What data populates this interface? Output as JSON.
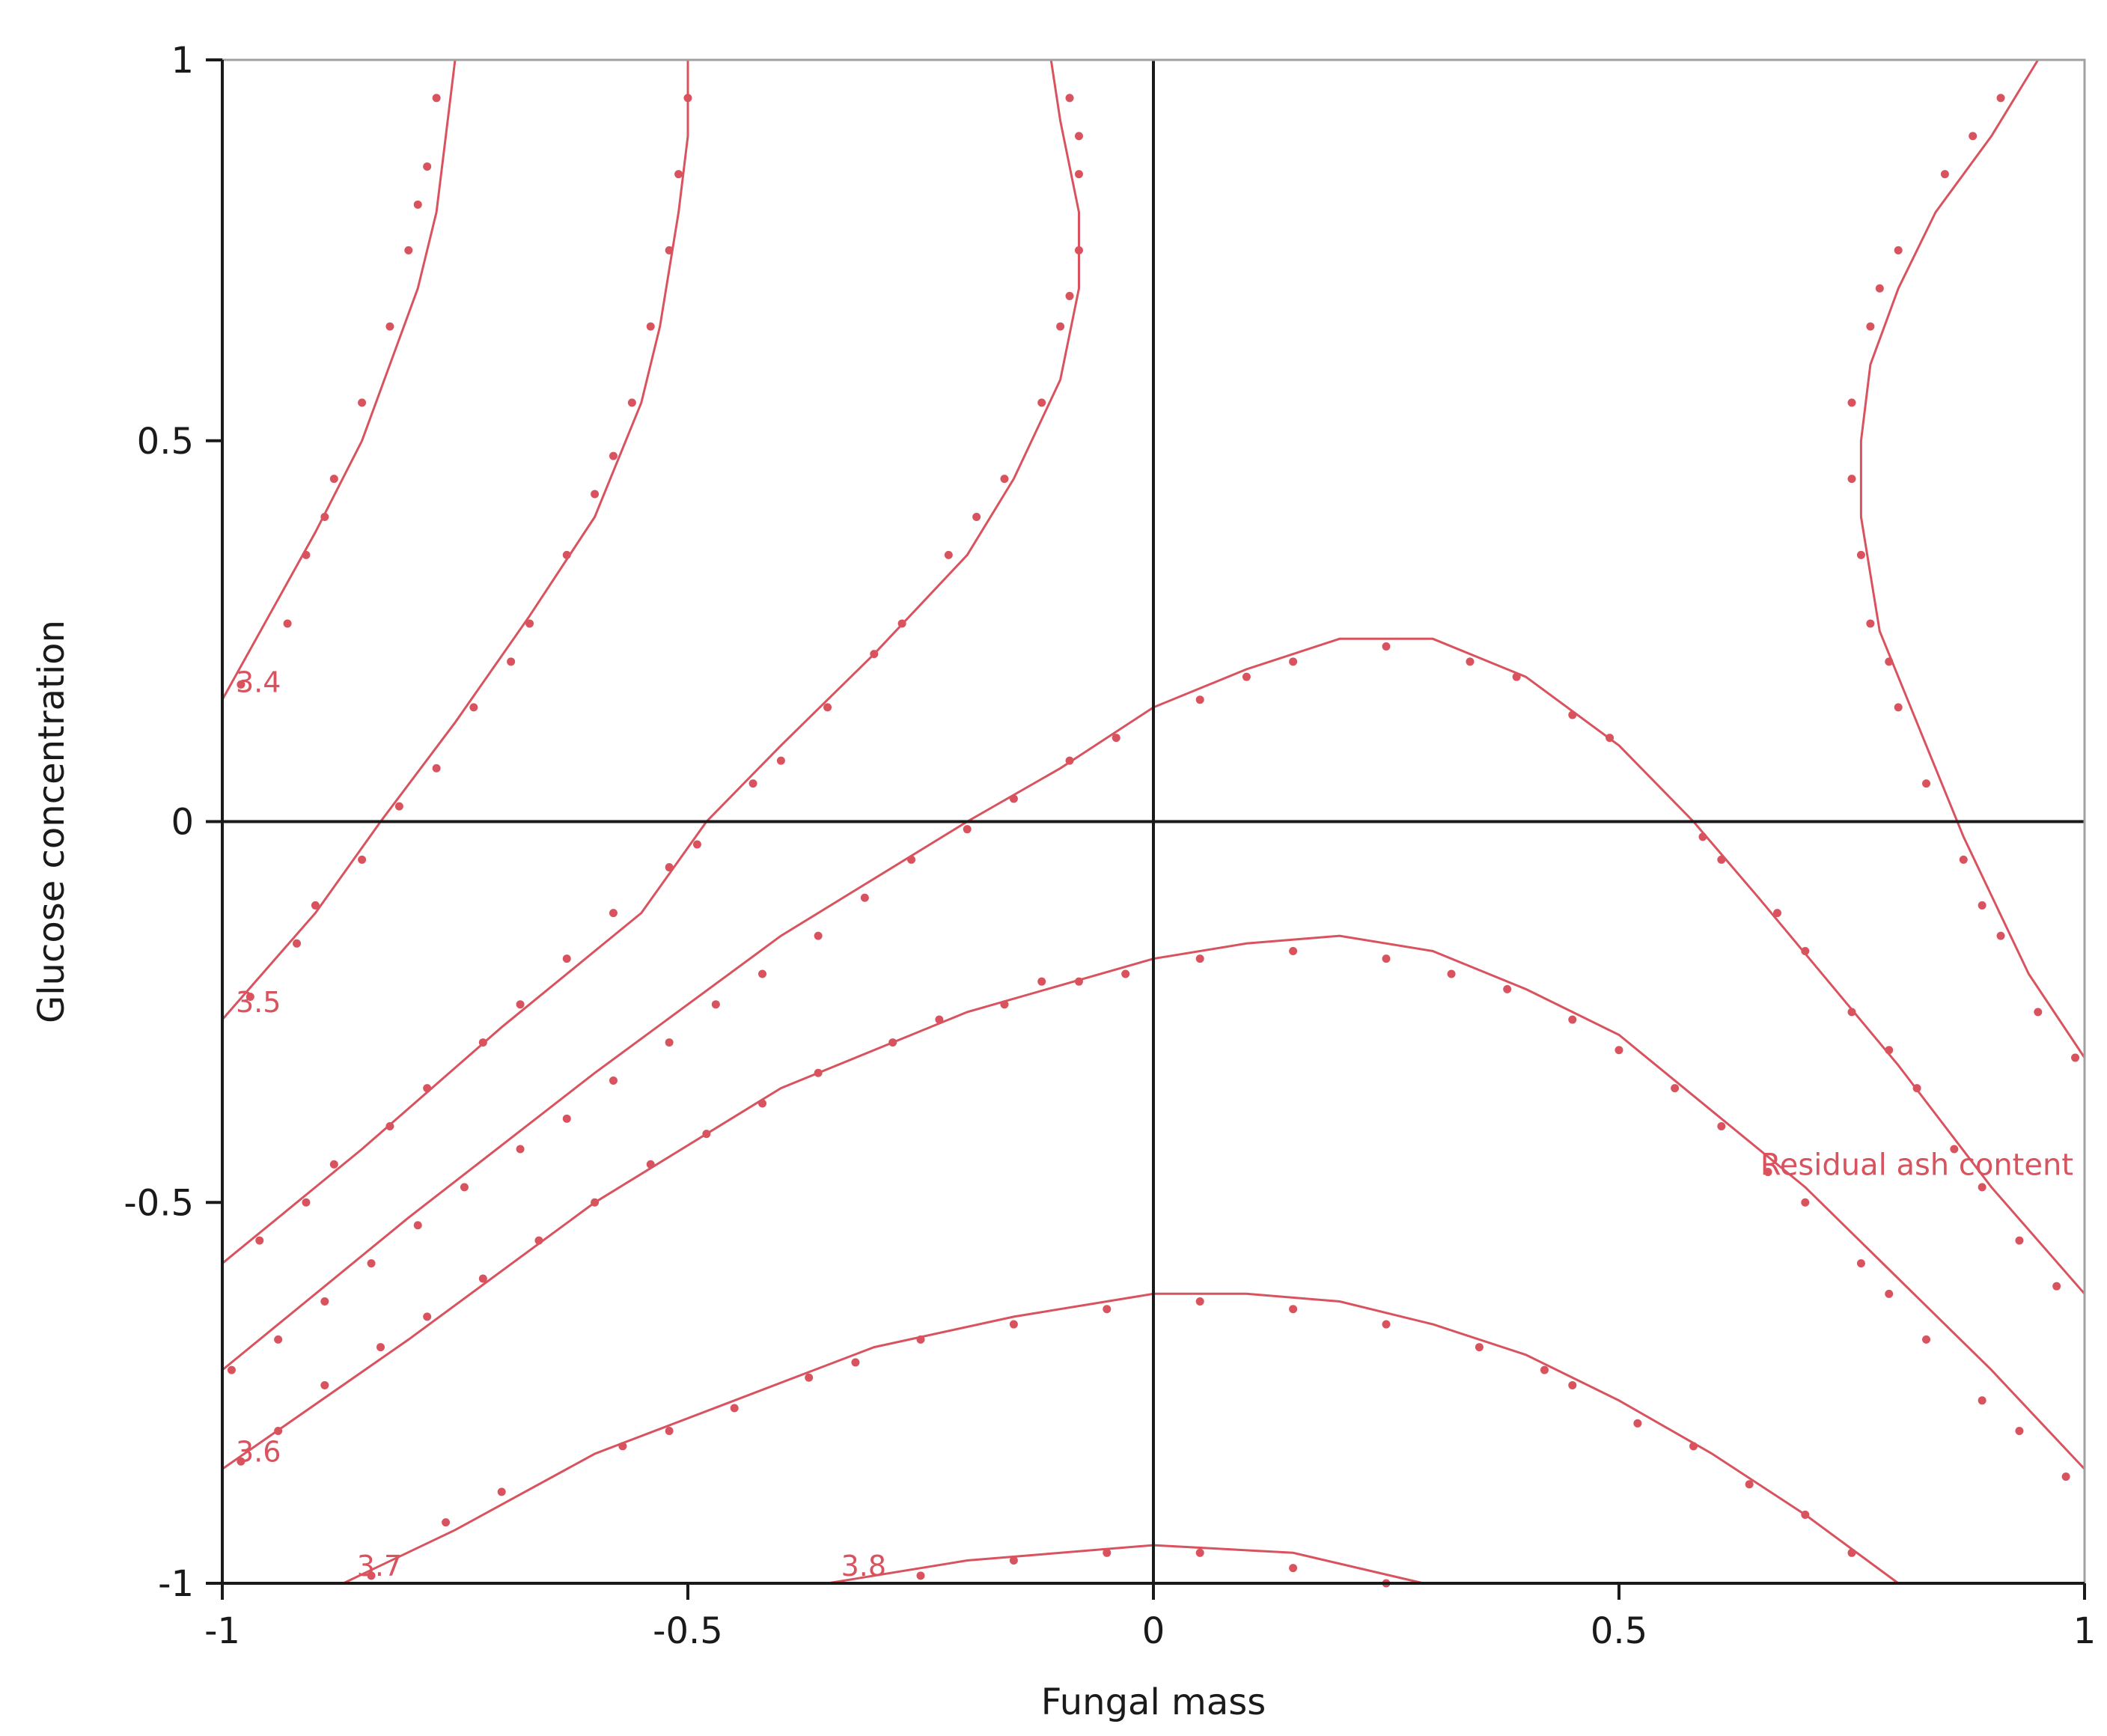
{
  "chart_data": {
    "type": "contour",
    "xlabel": "Fungal mass",
    "ylabel": "Glucose concentration",
    "xlim": [
      -1,
      1
    ],
    "ylim": [
      -1,
      1
    ],
    "x_ticks": [
      "-1",
      "-0.5",
      "0",
      "0.5",
      "1"
    ],
    "y_ticks": [
      "-1",
      "-0.5",
      "0",
      "0.5",
      "1"
    ],
    "grid": false,
    "reference_lines": {
      "x": 0,
      "y": 0
    },
    "response_label": "Residual ash content",
    "colors": {
      "contour": "#d9535f",
      "axis": "#1a1a1a",
      "frame": "#a0a0a0"
    },
    "contours": [
      {
        "label": "3.4",
        "line": [
          [
            -1,
            0.16
          ],
          [
            -0.95,
            0.27
          ],
          [
            -0.9,
            0.38
          ],
          [
            -0.85,
            0.5
          ],
          [
            -0.82,
            0.6
          ],
          [
            -0.79,
            0.7
          ],
          [
            -0.77,
            0.8
          ],
          [
            -0.76,
            0.9
          ],
          [
            -0.75,
            1.0
          ]
        ],
        "dots": [
          [
            -0.98,
            0.18
          ],
          [
            -0.93,
            0.26
          ],
          [
            -0.91,
            0.35
          ],
          [
            -0.89,
            0.4
          ],
          [
            -0.88,
            0.45
          ],
          [
            -0.85,
            0.55
          ],
          [
            -0.82,
            0.65
          ],
          [
            -0.8,
            0.75
          ],
          [
            -0.79,
            0.81
          ],
          [
            -0.78,
            0.86
          ],
          [
            -0.77,
            0.95
          ]
        ]
      },
      {
        "label": "3.5",
        "line": [
          [
            -1,
            -0.26
          ],
          [
            -0.9,
            -0.12
          ],
          [
            -0.83,
            0.0
          ],
          [
            -0.75,
            0.13
          ],
          [
            -0.67,
            0.27
          ],
          [
            -0.6,
            0.4
          ],
          [
            -0.55,
            0.55
          ],
          [
            -0.53,
            0.65
          ],
          [
            -0.51,
            0.8
          ],
          [
            -0.5,
            0.9
          ],
          [
            -0.5,
            1.0
          ]
        ],
        "dots": [
          [
            -0.97,
            -0.23
          ],
          [
            -0.92,
            -0.16
          ],
          [
            -0.9,
            -0.11
          ],
          [
            -0.85,
            -0.05
          ],
          [
            -0.81,
            0.02
          ],
          [
            -0.77,
            0.07
          ],
          [
            -0.73,
            0.15
          ],
          [
            -0.69,
            0.21
          ],
          [
            -0.67,
            0.26
          ],
          [
            -0.63,
            0.35
          ],
          [
            -0.6,
            0.43
          ],
          [
            -0.58,
            0.48
          ],
          [
            -0.56,
            0.55
          ],
          [
            -0.54,
            0.65
          ],
          [
            -0.52,
            0.75
          ],
          [
            -0.51,
            0.85
          ],
          [
            -0.5,
            0.95
          ]
        ]
      },
      {
        "label": "",
        "line": [
          [
            -1,
            -0.58
          ],
          [
            -0.85,
            -0.43
          ],
          [
            -0.7,
            -0.27
          ],
          [
            -0.55,
            -0.12
          ],
          [
            -0.48,
            0.0
          ],
          [
            -0.4,
            0.1
          ],
          [
            -0.3,
            0.22
          ],
          [
            -0.2,
            0.35
          ],
          [
            -0.15,
            0.45
          ],
          [
            -0.1,
            0.58
          ],
          [
            -0.08,
            0.7
          ],
          [
            -0.08,
            0.8
          ],
          [
            -0.1,
            0.92
          ],
          [
            -0.11,
            1.0
          ]
        ],
        "dots": [
          [
            -0.96,
            -0.55
          ],
          [
            -0.91,
            -0.5
          ],
          [
            -0.88,
            -0.45
          ],
          [
            -0.82,
            -0.4
          ],
          [
            -0.78,
            -0.35
          ],
          [
            -0.72,
            -0.29
          ],
          [
            -0.68,
            -0.24
          ],
          [
            -0.63,
            -0.18
          ],
          [
            -0.58,
            -0.12
          ],
          [
            -0.52,
            -0.06
          ],
          [
            -0.49,
            -0.03
          ],
          [
            -0.43,
            0.05
          ],
          [
            -0.4,
            0.08
          ],
          [
            -0.35,
            0.15
          ],
          [
            -0.3,
            0.22
          ],
          [
            -0.27,
            0.26
          ],
          [
            -0.22,
            0.35
          ],
          [
            -0.19,
            0.4
          ],
          [
            -0.16,
            0.45
          ],
          [
            -0.12,
            0.55
          ],
          [
            -0.1,
            0.65
          ],
          [
            -0.09,
            0.69
          ],
          [
            -0.08,
            0.75
          ],
          [
            -0.08,
            0.85
          ],
          [
            -0.08,
            0.9
          ],
          [
            -0.09,
            0.95
          ]
        ]
      },
      {
        "label": "",
        "line": [
          [
            -1,
            -0.72
          ],
          [
            -0.8,
            -0.52
          ],
          [
            -0.6,
            -0.33
          ],
          [
            -0.4,
            -0.15
          ],
          [
            -0.2,
            0.0
          ],
          [
            -0.1,
            0.07
          ],
          [
            0.0,
            0.15
          ],
          [
            0.1,
            0.2
          ],
          [
            0.2,
            0.24
          ],
          [
            0.3,
            0.24
          ],
          [
            0.4,
            0.19
          ],
          [
            0.5,
            0.1
          ],
          [
            0.58,
            0.0
          ],
          [
            0.65,
            -0.1
          ],
          [
            0.8,
            -0.32
          ],
          [
            0.9,
            -0.48
          ],
          [
            1.0,
            -0.62
          ]
        ],
        "dots": [
          [
            -0.99,
            -0.72
          ],
          [
            -0.94,
            -0.68
          ],
          [
            -0.89,
            -0.63
          ],
          [
            -0.84,
            -0.58
          ],
          [
            -0.79,
            -0.53
          ],
          [
            -0.74,
            -0.48
          ],
          [
            -0.68,
            -0.43
          ],
          [
            -0.63,
            -0.39
          ],
          [
            -0.58,
            -0.34
          ],
          [
            -0.52,
            -0.29
          ],
          [
            -0.47,
            -0.24
          ],
          [
            -0.42,
            -0.2
          ],
          [
            -0.36,
            -0.15
          ],
          [
            -0.31,
            -0.1
          ],
          [
            -0.26,
            -0.05
          ],
          [
            -0.2,
            -0.01
          ],
          [
            -0.15,
            0.03
          ],
          [
            -0.09,
            0.08
          ],
          [
            -0.04,
            0.11
          ],
          [
            0.05,
            0.16
          ],
          [
            0.1,
            0.19
          ],
          [
            0.15,
            0.21
          ],
          [
            0.25,
            0.23
          ],
          [
            0.34,
            0.21
          ],
          [
            0.39,
            0.19
          ],
          [
            0.45,
            0.14
          ],
          [
            0.49,
            0.11
          ],
          [
            0.59,
            -0.02
          ],
          [
            0.61,
            -0.05
          ],
          [
            0.67,
            -0.12
          ],
          [
            0.7,
            -0.17
          ],
          [
            0.75,
            -0.25
          ],
          [
            0.79,
            -0.3
          ],
          [
            0.82,
            -0.35
          ],
          [
            0.86,
            -0.43
          ],
          [
            0.89,
            -0.48
          ],
          [
            0.93,
            -0.55
          ],
          [
            0.97,
            -0.61
          ]
        ]
      },
      {
        "label": "3.6",
        "line": [
          [
            -1,
            -0.85
          ],
          [
            -0.8,
            -0.68
          ],
          [
            -0.6,
            -0.5
          ],
          [
            -0.4,
            -0.35
          ],
          [
            -0.2,
            -0.25
          ],
          [
            0.0,
            -0.18
          ],
          [
            0.1,
            -0.16
          ],
          [
            0.2,
            -0.15
          ],
          [
            0.3,
            -0.17
          ],
          [
            0.4,
            -0.22
          ],
          [
            0.5,
            -0.28
          ],
          [
            0.6,
            -0.38
          ],
          [
            0.7,
            -0.48
          ],
          [
            0.8,
            -0.6
          ],
          [
            0.9,
            -0.72
          ],
          [
            1.0,
            -0.85
          ]
        ],
        "dots": [
          [
            -0.98,
            -0.84
          ],
          [
            -0.94,
            -0.8
          ],
          [
            -0.89,
            -0.74
          ],
          [
            -0.83,
            -0.69
          ],
          [
            -0.78,
            -0.65
          ],
          [
            -0.72,
            -0.6
          ],
          [
            -0.66,
            -0.55
          ],
          [
            -0.6,
            -0.5
          ],
          [
            -0.54,
            -0.45
          ],
          [
            -0.48,
            -0.41
          ],
          [
            -0.42,
            -0.37
          ],
          [
            -0.36,
            -0.33
          ],
          [
            -0.28,
            -0.29
          ],
          [
            -0.23,
            -0.26
          ],
          [
            -0.16,
            -0.24
          ],
          [
            -0.12,
            -0.21
          ],
          [
            -0.08,
            -0.21
          ],
          [
            -0.03,
            -0.2
          ],
          [
            0.05,
            -0.18
          ],
          [
            0.15,
            -0.17
          ],
          [
            0.25,
            -0.18
          ],
          [
            0.32,
            -0.2
          ],
          [
            0.38,
            -0.22
          ],
          [
            0.45,
            -0.26
          ],
          [
            0.5,
            -0.3
          ],
          [
            0.56,
            -0.35
          ],
          [
            0.61,
            -0.4
          ],
          [
            0.66,
            -0.46
          ],
          [
            0.7,
            -0.5
          ],
          [
            0.76,
            -0.58
          ],
          [
            0.79,
            -0.62
          ],
          [
            0.83,
            -0.68
          ],
          [
            0.89,
            -0.76
          ],
          [
            0.93,
            -0.8
          ],
          [
            0.98,
            -0.86
          ]
        ]
      },
      {
        "label": "3.7",
        "line": [
          [
            -0.87,
            -1.0
          ],
          [
            -0.75,
            -0.93
          ],
          [
            -0.6,
            -0.83
          ],
          [
            -0.45,
            -0.76
          ],
          [
            -0.3,
            -0.69
          ],
          [
            -0.15,
            -0.65
          ],
          [
            0.0,
            -0.62
          ],
          [
            0.1,
            -0.62
          ],
          [
            0.2,
            -0.63
          ],
          [
            0.3,
            -0.66
          ],
          [
            0.4,
            -0.7
          ],
          [
            0.5,
            -0.76
          ],
          [
            0.6,
            -0.83
          ],
          [
            0.7,
            -0.91
          ],
          [
            0.8,
            -1.0
          ]
        ],
        "dots": [
          [
            -0.84,
            -0.99
          ],
          [
            -0.76,
            -0.92
          ],
          [
            -0.7,
            -0.88
          ],
          [
            -0.57,
            -0.82
          ],
          [
            -0.52,
            -0.8
          ],
          [
            -0.45,
            -0.77
          ],
          [
            -0.37,
            -0.73
          ],
          [
            -0.32,
            -0.71
          ],
          [
            -0.25,
            -0.68
          ],
          [
            -0.15,
            -0.66
          ],
          [
            -0.05,
            -0.64
          ],
          [
            0.05,
            -0.63
          ],
          [
            0.15,
            -0.64
          ],
          [
            0.25,
            -0.66
          ],
          [
            0.35,
            -0.69
          ],
          [
            0.42,
            -0.72
          ],
          [
            0.45,
            -0.74
          ],
          [
            0.52,
            -0.79
          ],
          [
            0.58,
            -0.82
          ],
          [
            0.64,
            -0.87
          ],
          [
            0.7,
            -0.91
          ],
          [
            0.75,
            -0.96
          ]
        ]
      },
      {
        "label": "3.8",
        "line": [
          [
            -0.35,
            -1.0
          ],
          [
            -0.2,
            -0.97
          ],
          [
            0.0,
            -0.95
          ],
          [
            0.15,
            -0.96
          ],
          [
            0.29,
            -1.0
          ]
        ],
        "dots": [
          [
            -0.25,
            -0.99
          ],
          [
            -0.15,
            -0.97
          ],
          [
            -0.05,
            -0.96
          ],
          [
            0.05,
            -0.96
          ],
          [
            0.15,
            -0.98
          ],
          [
            0.25,
            -1.0
          ]
        ]
      },
      {
        "label": "",
        "line": [
          [
            1.0,
            -0.31
          ],
          [
            0.94,
            -0.2
          ],
          [
            0.87,
            -0.02
          ],
          [
            0.83,
            0.1
          ],
          [
            0.78,
            0.25
          ],
          [
            0.76,
            0.4
          ],
          [
            0.76,
            0.5
          ],
          [
            0.77,
            0.6
          ],
          [
            0.8,
            0.7
          ],
          [
            0.84,
            0.8
          ],
          [
            0.9,
            0.9
          ],
          [
            0.95,
            1.0
          ]
        ],
        "dots": [
          [
            0.99,
            -0.31
          ],
          [
            0.95,
            -0.25
          ],
          [
            0.91,
            -0.15
          ],
          [
            0.89,
            -0.11
          ],
          [
            0.87,
            -0.05
          ],
          [
            0.83,
            0.05
          ],
          [
            0.8,
            0.15
          ],
          [
            0.79,
            0.21
          ],
          [
            0.77,
            0.26
          ],
          [
            0.76,
            0.35
          ],
          [
            0.75,
            0.45
          ],
          [
            0.75,
            0.55
          ],
          [
            0.77,
            0.65
          ],
          [
            0.78,
            0.7
          ],
          [
            0.8,
            0.75
          ],
          [
            0.85,
            0.85
          ],
          [
            0.88,
            0.9
          ],
          [
            0.91,
            0.95
          ]
        ]
      }
    ]
  }
}
